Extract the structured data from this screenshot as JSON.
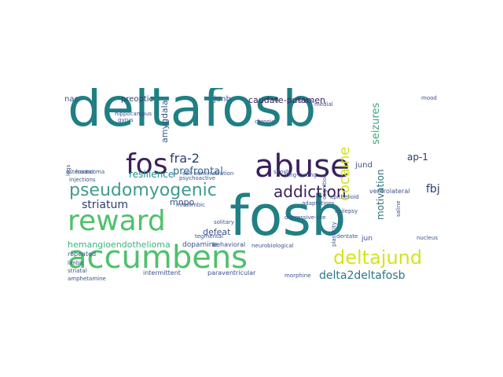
{
  "palette": {
    "dark_purple": "#440154",
    "indigo": "#3b528b",
    "blue": "#31688e",
    "teal": "#21918c",
    "green": "#35b779",
    "light_green": "#5ec962",
    "lime": "#b5de2b",
    "yellow": "#dde318"
  },
  "words": [
    {
      "text": "deltafosb",
      "color": "#1f7f84"
    },
    {
      "text": "fosb",
      "color": "#1f7f84"
    },
    {
      "text": "accumbens",
      "color": "#4fc16b"
    },
    {
      "text": "reward",
      "color": "#4fc16b"
    },
    {
      "text": "abuse",
      "color": "#3b1f5c"
    },
    {
      "text": "fos",
      "color": "#3b1f5c"
    },
    {
      "text": "pseudomyogenic",
      "color": "#3f9b8f"
    },
    {
      "text": "deltajund",
      "color": "#d5e320"
    },
    {
      "text": "addiction",
      "color": "#3b1f5c"
    },
    {
      "text": "cocaine",
      "color": "#d5e320"
    },
    {
      "text": "delta2deltafosb",
      "color": "#29788e"
    },
    {
      "text": "fra-2",
      "color": "#2b3d6b"
    },
    {
      "text": "striatum",
      "color": "#2b3d6b"
    },
    {
      "text": "fbj",
      "color": "#2b3d6b"
    },
    {
      "text": "seizures",
      "color": "#3fa47a"
    },
    {
      "text": "motivation",
      "color": "#2b6f7a"
    },
    {
      "text": "prefrontal",
      "color": "#31688e"
    },
    {
      "text": "amygdala",
      "color": "#3b528b"
    },
    {
      "text": "resilience",
      "color": "#21918c"
    },
    {
      "text": "caudate-putamen",
      "color": "#3b1f5c"
    },
    {
      "text": "hemangioendothelioma",
      "color": "#35b779"
    },
    {
      "text": "mnpo",
      "color": "#3b528b"
    },
    {
      "text": "ap-1",
      "color": "#2b3d6b"
    },
    {
      "text": "jund",
      "color": "#3b528b"
    },
    {
      "text": "defeat",
      "color": "#3b528b"
    },
    {
      "text": "preoptic",
      "color": "#2b3d6b"
    },
    {
      "text": "junb",
      "color": "#3b528b"
    },
    {
      "text": "nac",
      "color": "#3b528b"
    },
    {
      "text": "dopamine",
      "color": "#3b528b"
    },
    {
      "text": "jun",
      "color": "#3b528b"
    },
    {
      "text": "intermittent",
      "color": "#3b528b"
    },
    {
      "text": "paraventricular",
      "color": "#3b528b"
    },
    {
      "text": "repeated",
      "color": "#3b528b"
    },
    {
      "text": "behavioral",
      "color": "#3b528b"
    },
    {
      "text": "ventrolateral",
      "color": "#3b528b"
    },
    {
      "text": "self-administration",
      "color": "#3b528b"
    },
    {
      "text": "adaptations",
      "color": "#3b528b"
    },
    {
      "text": "solitary",
      "color": "#3b528b"
    },
    {
      "text": "tegmental",
      "color": "#3b528b"
    },
    {
      "text": "social",
      "color": "#3b528b"
    },
    {
      "text": "chronic",
      "color": "#3b528b"
    },
    {
      "text": "long-lasting",
      "color": "#3b528b"
    },
    {
      "text": "epilepsy",
      "color": "#3b528b"
    },
    {
      "text": "plasticity",
      "color": "#3b528b"
    },
    {
      "text": "morphine",
      "color": "#3b528b"
    },
    {
      "text": "amphetamine",
      "color": "#3b528b"
    },
    {
      "text": "striatal",
      "color": "#3b528b"
    },
    {
      "text": "limbic",
      "color": "#3b528b"
    },
    {
      "text": "frontal",
      "color": "#3b528b"
    },
    {
      "text": "hippocampus",
      "color": "#3b528b"
    },
    {
      "text": "gyrus",
      "color": "#3b528b"
    },
    {
      "text": "infralimbic",
      "color": "#3b528b"
    },
    {
      "text": "psychoactive",
      "color": "#3b528b"
    },
    {
      "text": "depressive-like",
      "color": "#3b528b"
    },
    {
      "text": "cognition",
      "color": "#3b528b"
    },
    {
      "text": "neurobiological",
      "color": "#3b528b"
    },
    {
      "text": "epithelioid",
      "color": "#3b528b"
    },
    {
      "text": "osteosarcoma",
      "color": "#3b528b"
    },
    {
      "text": "dentate",
      "color": "#3b528b"
    },
    {
      "text": "sifosb",
      "color": "#3b528b"
    },
    {
      "text": "medial",
      "color": "#3b528b"
    },
    {
      "text": "mood",
      "color": "#3b528b"
    },
    {
      "text": "saline",
      "color": "#3b528b"
    },
    {
      "text": "nucleus",
      "color": "#3b528b"
    },
    {
      "text": "injections",
      "color": "#3b528b"
    },
    {
      "text": "legs",
      "color": "#3b528b"
    }
  ]
}
